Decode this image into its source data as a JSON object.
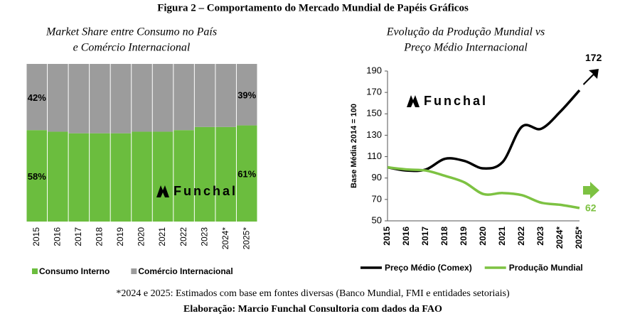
{
  "title": "Figura 2 – Comportamento do Mercado Mundial de Papéis Gráficos",
  "logo_text": "Funchal",
  "footnote": "*2024 e 2025: Estimados com base em fontes diversas (Banco Mundial, FMI e entidades setoriais)",
  "source": "Elaboração: Marcio Funchal Consultoria com dados da FAO",
  "chart_data": [
    {
      "type": "bar",
      "stacked": true,
      "title": [
        "Market Share entre Consumo no País",
        "e Comércio Internacional"
      ],
      "categories": [
        "2015",
        "2016",
        "2017",
        "2018",
        "2019",
        "2020",
        "2021",
        "2022",
        "2023",
        "2024*",
        "2025*"
      ],
      "ylim": [
        0,
        100
      ],
      "series": [
        {
          "name": "Consumo Interno",
          "color": "#6bbd3e",
          "values": [
            58,
            57,
            56,
            56,
            56,
            57,
            57,
            58,
            60,
            60,
            61
          ],
          "value_labels": [
            "58%",
            null,
            null,
            null,
            null,
            null,
            null,
            null,
            null,
            null,
            "61%"
          ]
        },
        {
          "name": "Comércio Internacional",
          "color": "#9c9c9c",
          "values": [
            42,
            43,
            44,
            44,
            44,
            43,
            43,
            42,
            40,
            40,
            39
          ],
          "value_labels": [
            "42%",
            null,
            null,
            null,
            null,
            null,
            null,
            null,
            null,
            null,
            "39%"
          ]
        }
      ]
    },
    {
      "type": "line",
      "title": [
        "Evolução da Produção Mundial vs",
        "Preço Médio Internacional"
      ],
      "ylabel": "Base Média 2014 = 100",
      "categories": [
        "2015",
        "2016",
        "2017",
        "2018",
        "2019",
        "2020",
        "2021",
        "2022",
        "2023",
        "2024*",
        "2025*"
      ],
      "ylim": [
        50,
        190
      ],
      "yticks": [
        50,
        70,
        90,
        110,
        130,
        150,
        170,
        190
      ],
      "series": [
        {
          "name": "Preço Médio (Comex)",
          "color": "#000000",
          "values": [
            100,
            97,
            98,
            108,
            106,
            99,
            105,
            138,
            136,
            152,
            172
          ],
          "value_labels": [
            null,
            null,
            null,
            null,
            null,
            null,
            null,
            null,
            null,
            null,
            "172"
          ]
        },
        {
          "name": "Produção Mundial",
          "color": "#7dc242",
          "values": [
            100,
            98,
            97,
            92,
            86,
            75,
            76,
            74,
            67,
            65,
            62
          ],
          "value_labels": [
            null,
            null,
            null,
            null,
            null,
            null,
            null,
            null,
            null,
            null,
            "62"
          ]
        }
      ]
    }
  ]
}
